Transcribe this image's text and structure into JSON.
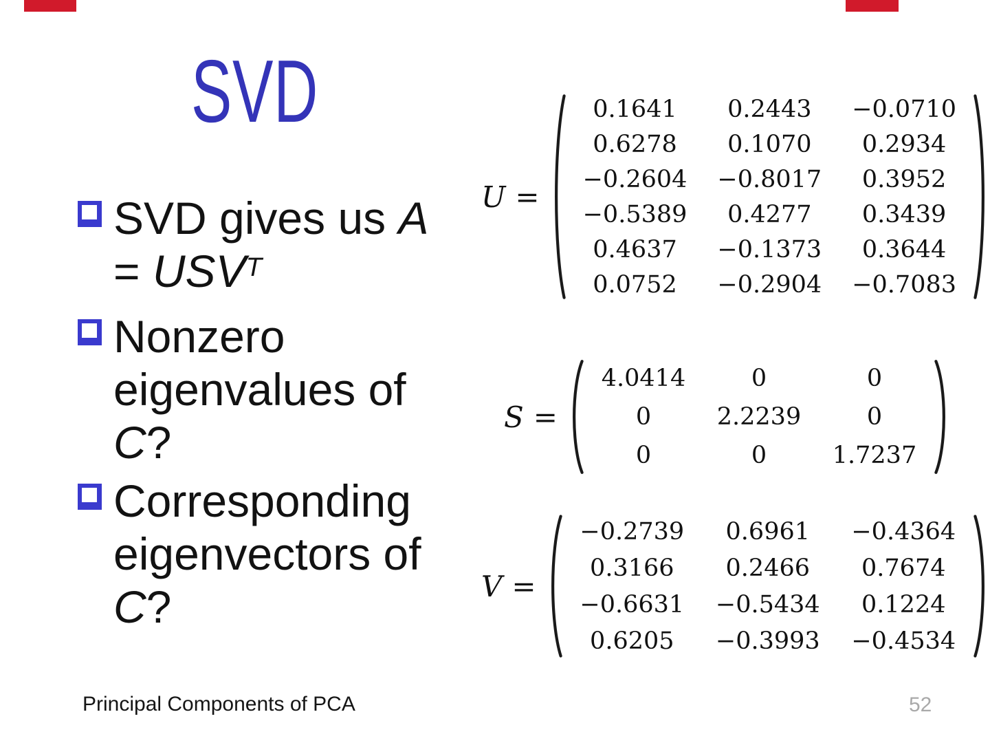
{
  "title": "SVD",
  "bullets": [
    {
      "lines": [
        [
          {
            "text": "SVD gives us "
          },
          {
            "text": "A",
            "italic": true
          }
        ],
        [
          {
            "text": "= "
          },
          {
            "text": "USV",
            "italic": true
          },
          {
            "text": "T",
            "italic": true,
            "sup": true
          }
        ]
      ]
    },
    {
      "lines": [
        [
          {
            "text": "Nonzero"
          }
        ],
        [
          {
            "text": "eigenvalues of"
          }
        ],
        [
          {
            "text": "C",
            "italic": true
          },
          {
            "text": "?"
          }
        ]
      ]
    },
    {
      "lines": [
        [
          {
            "text": "Corresponding"
          }
        ],
        [
          {
            "text": "eigenvectors of"
          }
        ],
        [
          {
            "text": "C",
            "italic": true
          },
          {
            "text": "?"
          }
        ]
      ]
    }
  ],
  "matrices": [
    {
      "name": "U",
      "rows": [
        [
          "0.1641",
          "0.2443",
          "-0.0710"
        ],
        [
          "0.6278",
          "0.1070",
          "0.2934"
        ],
        [
          "-0.2604",
          "-0.8017",
          "0.3952"
        ],
        [
          "-0.5389",
          "0.4277",
          "0.3439"
        ],
        [
          "0.4637",
          "-0.1373",
          "0.3644"
        ],
        [
          "0.0752",
          "-0.2904",
          "-0.7083"
        ]
      ]
    },
    {
      "name": "S",
      "rows": [
        [
          "4.0414",
          "0",
          "0"
        ],
        [
          "0",
          "2.2239",
          "0"
        ],
        [
          "0",
          "0",
          "1.7237"
        ]
      ]
    },
    {
      "name": "V",
      "rows": [
        [
          "-0.2739",
          "0.6961",
          "-0.4364"
        ],
        [
          "0.3166",
          "0.2466",
          "0.7674"
        ],
        [
          "-0.6631",
          "-0.5434",
          "0.1224"
        ],
        [
          "0.6205",
          "-0.3993",
          "-0.4534"
        ]
      ]
    }
  ],
  "footer": {
    "label": "Principal Components of PCA",
    "page_number": "52"
  },
  "colors": {
    "title": "#3434b8",
    "bullet": "#3a3ace",
    "text": "#121212",
    "page-number": "#a9a9a9",
    "red-bar": "#d11a2b"
  }
}
